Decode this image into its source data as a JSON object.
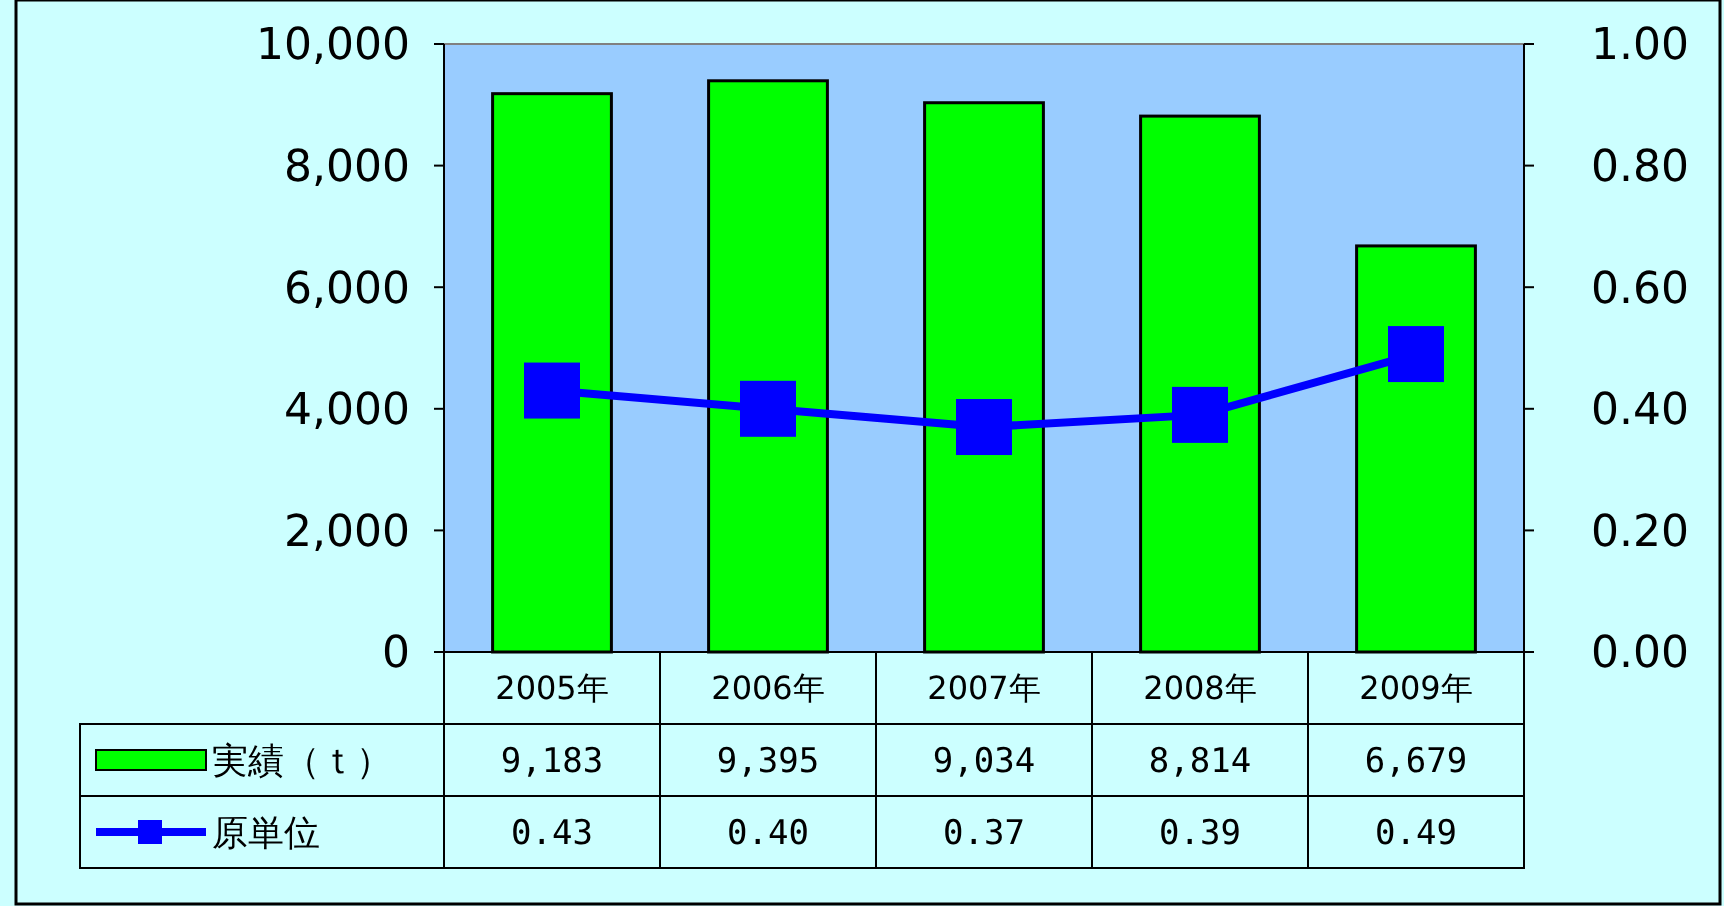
{
  "chart_data": {
    "type": "bar",
    "categories": [
      "2005年",
      "2006年",
      "2007年",
      "2008年",
      "2009年"
    ],
    "series": [
      {
        "name": "実績（ｔ）",
        "color": "#00ff00",
        "values": [
          9183,
          9395,
          9034,
          8814,
          6679
        ],
        "value_labels": [
          "9,183",
          "9,395",
          "9,034",
          "8,814",
          "6,679"
        ]
      },
      {
        "name": "原単位",
        "type": "line",
        "axis": "y2",
        "color": "#0000ff",
        "values": [
          0.43,
          0.4,
          0.37,
          0.39,
          0.49
        ],
        "value_labels": [
          "0.43",
          "0.40",
          "0.37",
          "0.39",
          "0.49"
        ]
      }
    ],
    "ylim": [
      0,
      10000
    ],
    "yticks": [
      {
        "value": 0,
        "label": "0"
      },
      {
        "value": 2000,
        "label": "2,000"
      },
      {
        "value": 4000,
        "label": "4,000"
      },
      {
        "value": 6000,
        "label": "6,000"
      },
      {
        "value": 8000,
        "label": "8,000"
      },
      {
        "value": 10000,
        "label": "10,000"
      }
    ],
    "y2lim": [
      0,
      1
    ],
    "y2ticks": [
      {
        "value": 0,
        "label": "0.00"
      },
      {
        "value": 0.2,
        "label": "0.20"
      },
      {
        "value": 0.4,
        "label": "0.40"
      },
      {
        "value": 0.6,
        "label": "0.60"
      },
      {
        "value": 0.8,
        "label": "0.80"
      },
      {
        "value": 1,
        "label": "1.00"
      }
    ],
    "marker": "square",
    "legend": "bottom",
    "grid": false
  }
}
